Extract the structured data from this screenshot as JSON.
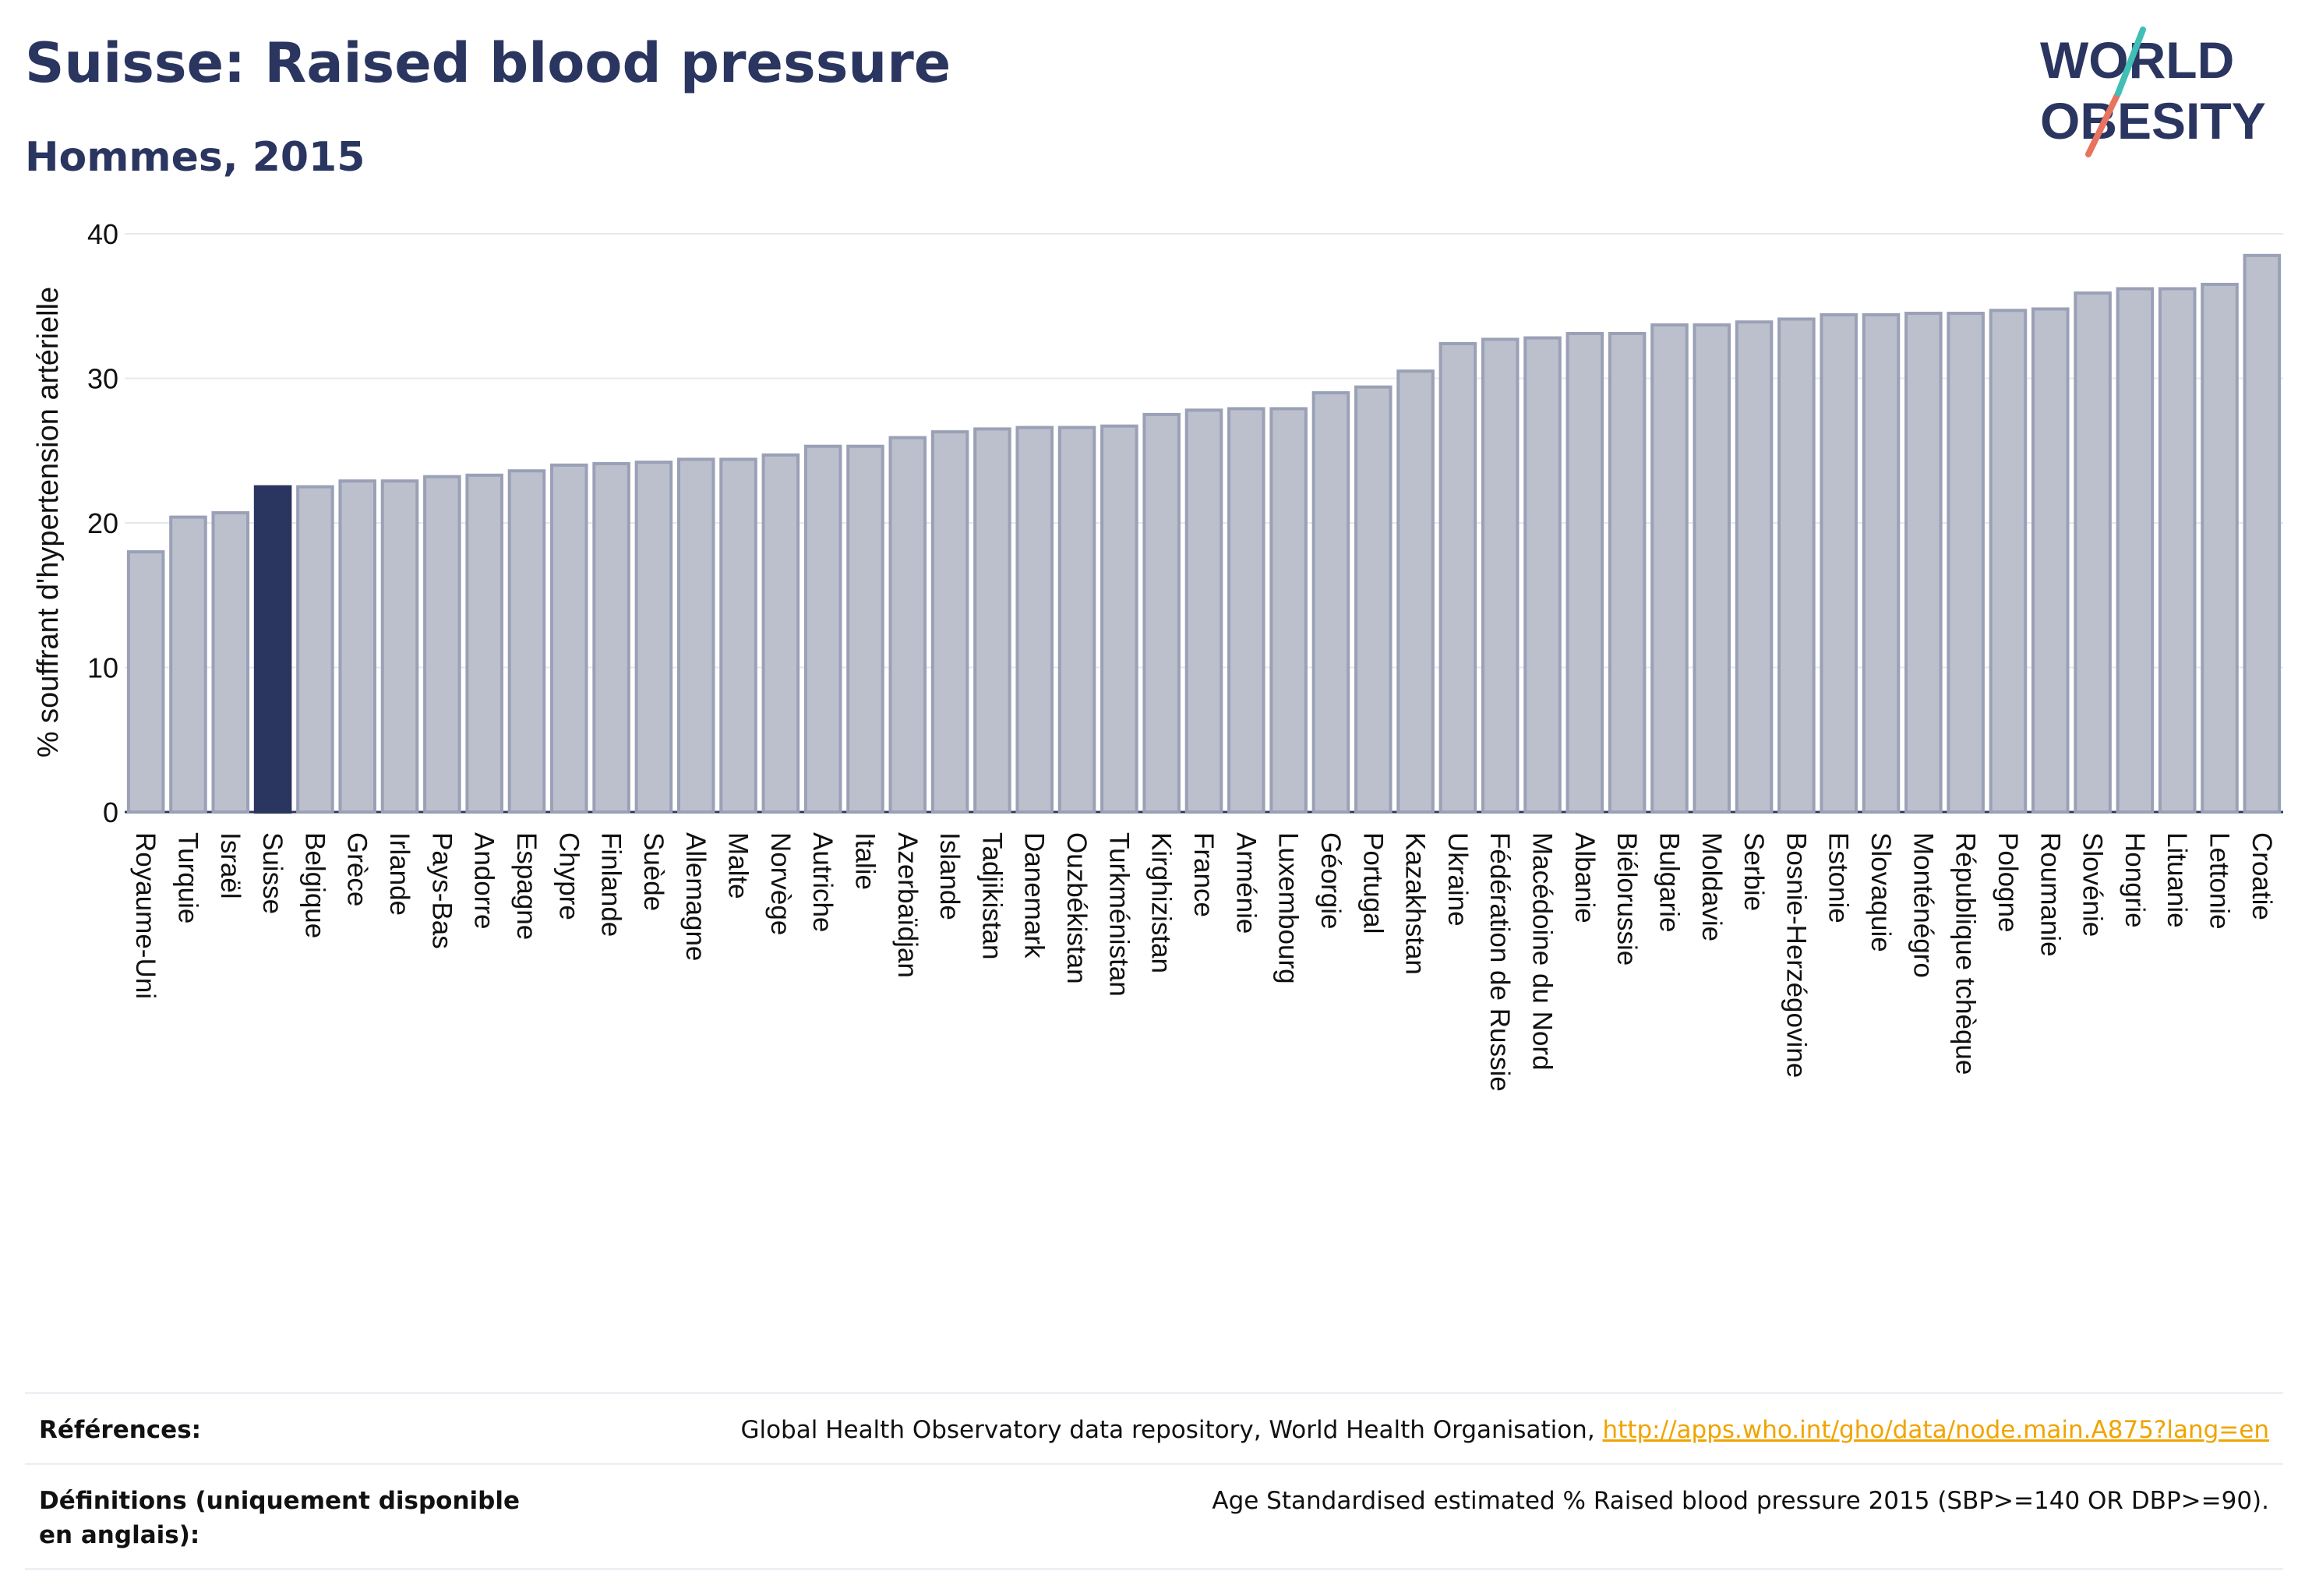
{
  "header": {
    "title": "Suisse: Raised blood pressure",
    "subtitle": "Hommes, 2015"
  },
  "logo": {
    "line1": "WORLD",
    "line2": "OBESITY"
  },
  "colors": {
    "bar": "#bcc0cd",
    "bar_border": "#9aa0b6",
    "highlight": "#2a3560",
    "title": "#2a3560",
    "link": "#f0a400",
    "grid": "#e6e8ee"
  },
  "chart_data": {
    "type": "bar",
    "ylabel": "% souffrant d'hypertension artérielle",
    "ylim": [
      0,
      40
    ],
    "yticks": [
      0,
      10,
      20,
      30,
      40
    ],
    "highlight": "Suisse",
    "grid": true,
    "categories": [
      "Royaume-Uni",
      "Turquie",
      "Israël",
      "Suisse",
      "Belgique",
      "Grèce",
      "Irlande",
      "Pays-Bas",
      "Andorre",
      "Espagne",
      "Chypre",
      "Finlande",
      "Suède",
      "Allemagne",
      "Malte",
      "Norvège",
      "Autriche",
      "Italie",
      "Azerbaïdjan",
      "Islande",
      "Tadjikistan",
      "Danemark",
      "Ouzbékistan",
      "Turkménistan",
      "Kirghizistan",
      "France",
      "Arménie",
      "Luxembourg",
      "Géorgie",
      "Portugal",
      "Kazakhstan",
      "Ukraine",
      "Fédération de Russie",
      "Macédoine du Nord",
      "Albanie",
      "Biélorussie",
      "Bulgarie",
      "Moldavie",
      "Serbie",
      "Bosnie-Herzégovine",
      "Estonie",
      "Slovaquie",
      "Monténégro",
      "République tchèque",
      "Pologne",
      "Roumanie",
      "Slovénie",
      "Hongrie",
      "Lituanie",
      "Lettonie",
      "Croatie"
    ],
    "values": [
      18.0,
      20.4,
      20.7,
      22.5,
      22.5,
      22.9,
      22.9,
      23.2,
      23.3,
      23.6,
      24.0,
      24.1,
      24.2,
      24.4,
      24.4,
      24.7,
      25.3,
      25.3,
      25.9,
      26.3,
      26.5,
      26.6,
      26.6,
      26.7,
      27.5,
      27.8,
      27.9,
      27.9,
      29.0,
      29.4,
      30.5,
      32.4,
      32.7,
      32.8,
      33.1,
      33.1,
      33.7,
      33.7,
      33.9,
      34.1,
      34.4,
      34.4,
      34.5,
      34.5,
      34.7,
      34.8,
      35.9,
      36.2,
      36.2,
      36.5,
      38.5
    ]
  },
  "references": {
    "sources_label": "Références:",
    "sources_text": "Global Health Observatory data repository, World Health Organisation, ",
    "sources_link": "http://apps.who.int/gho/data/node.main.A875?lang=en",
    "definitions_label": "Définitions (uniquement disponible en anglais):",
    "definitions_text": "Age Standardised estimated % Raised blood pressure 2015 (SBP>=140 OR DBP>=90)."
  }
}
